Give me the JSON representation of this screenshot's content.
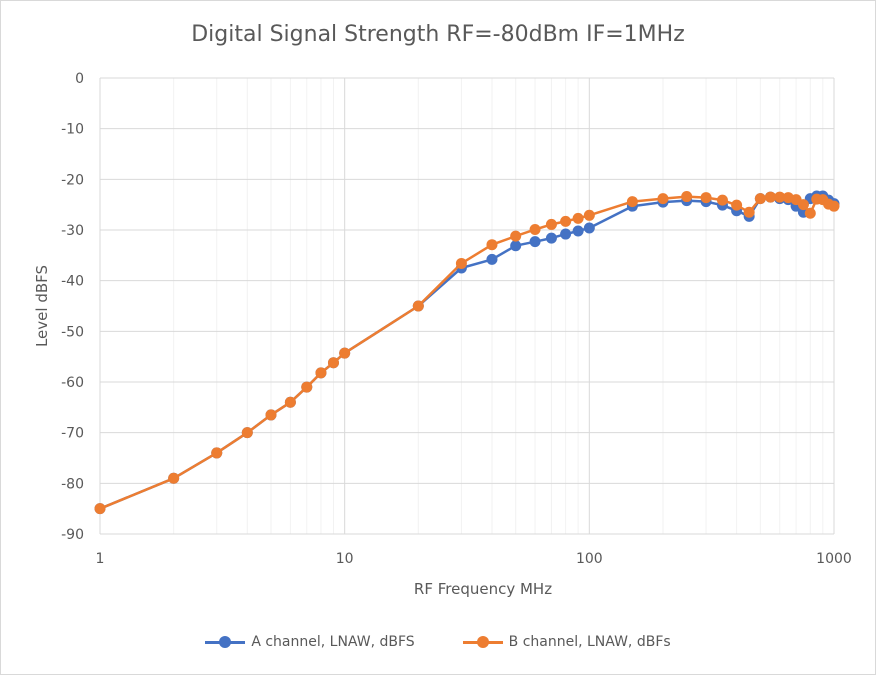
{
  "chart_data": {
    "type": "line",
    "title": "Digital Signal Strength RF=-80dBm IF=1MHz",
    "xlabel": "RF Frequency MHz",
    "ylabel": "Level dBFS",
    "xscale": "log",
    "xlim": [
      1,
      1000
    ],
    "ylim": [
      -90,
      0
    ],
    "x_ticks": [
      "1",
      "10",
      "100",
      "1000"
    ],
    "y_ticks": [
      "0",
      "-10",
      "-20",
      "-30",
      "-40",
      "-50",
      "-60",
      "-70",
      "-80",
      "-90"
    ],
    "grid": true,
    "legend": "bottom",
    "series": [
      {
        "name": "A channel, LNAW, dBFS",
        "color": "#4472c4",
        "x": [
          1,
          2,
          3,
          4,
          5,
          6,
          7,
          8,
          9,
          10,
          20,
          30,
          40,
          50,
          60,
          70,
          80,
          90,
          100,
          150,
          200,
          250,
          300,
          350,
          400,
          450,
          500,
          550,
          600,
          650,
          700,
          750,
          800,
          850,
          900,
          950,
          1000
        ],
        "y": [
          -85,
          -79,
          -74,
          -70,
          -66.5,
          -64,
          -61,
          -58.2,
          -56.2,
          -54.3,
          -45,
          -37.5,
          -35.8,
          -33.1,
          -32.3,
          -31.6,
          -30.8,
          -30.2,
          -29.6,
          -25.3,
          -24.5,
          -24.2,
          -24.4,
          -25.1,
          -26.2,
          -27.3,
          -23.8,
          -23.5,
          -23.8,
          -24,
          -25.3,
          -26.5,
          -23.8,
          -23.3,
          -23.3,
          -24.1,
          -24.8
        ]
      },
      {
        "name": "B channel, LNAW, dBFs",
        "color": "#ed7d31",
        "x": [
          1,
          2,
          3,
          4,
          5,
          6,
          7,
          8,
          9,
          10,
          20,
          30,
          40,
          50,
          60,
          70,
          80,
          90,
          100,
          150,
          200,
          250,
          300,
          350,
          400,
          450,
          500,
          550,
          600,
          650,
          700,
          750,
          800,
          850,
          900,
          950,
          1000
        ],
        "y": [
          -85,
          -79,
          -74,
          -70,
          -66.5,
          -64,
          -61,
          -58.2,
          -56.2,
          -54.3,
          -45,
          -36.6,
          -32.9,
          -31.2,
          -29.9,
          -28.9,
          -28.3,
          -27.7,
          -27.1,
          -24.4,
          -23.8,
          -23.4,
          -23.6,
          -24.1,
          -25.1,
          -26.5,
          -23.8,
          -23.5,
          -23.5,
          -23.6,
          -24,
          -25,
          -26.7,
          -23.9,
          -24,
          -24.9,
          -25.3
        ]
      }
    ]
  }
}
